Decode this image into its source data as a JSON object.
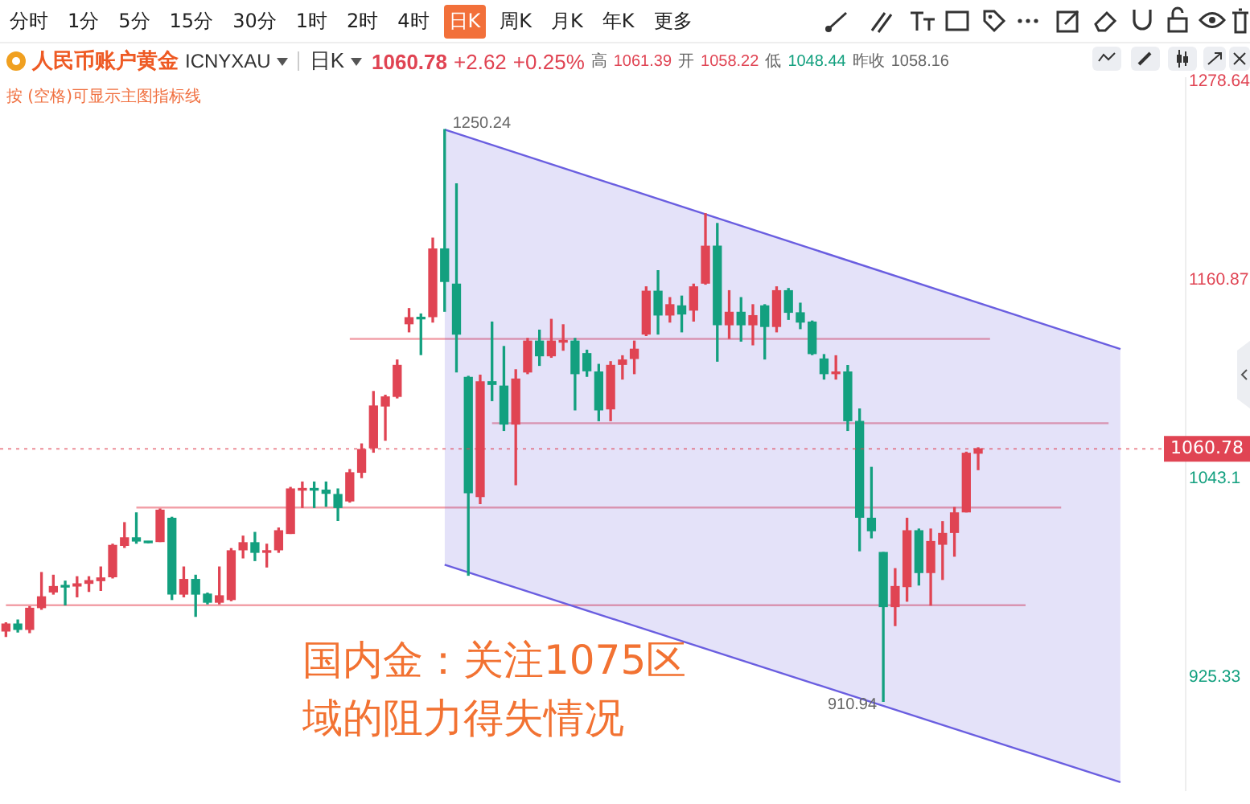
{
  "chart_data": {
    "type": "candlestick",
    "title": "人民币账户黄金 ICNYXAU",
    "subtitle": "日K 1060.78 +2.62 +0.25% 高 1061.39 开 1058.22 低 1048.44 昨收 1058.16",
    "annotations": [
      "分时",
      "1分",
      "5分",
      "15分",
      "30分",
      "1时",
      "2时",
      "4时",
      "日K",
      "周K",
      "月K",
      "年K",
      "更多",
      "按 (空格)可显示主图指标线",
      "国内金：关注1075区域的阻力得失情况",
      "1250.24",
      "910.94"
    ],
    "categories": [
      null,
      null,
      null,
      null,
      null,
      null,
      null,
      null,
      null,
      null,
      null,
      null,
      null,
      null,
      null,
      null,
      null,
      null,
      null,
      null,
      null,
      null,
      null,
      null,
      null,
      null,
      null,
      null,
      null,
      null,
      null,
      null,
      null,
      null,
      null,
      null,
      null,
      null,
      null,
      null,
      null,
      null,
      null,
      null,
      null,
      null,
      null,
      null,
      null,
      null,
      null,
      null,
      null,
      null,
      null,
      null,
      null,
      null,
      null,
      null,
      null,
      null,
      null,
      null,
      null,
      null,
      null,
      null,
      null,
      null,
      null,
      null,
      null,
      null,
      null,
      null,
      null,
      null,
      null,
      null,
      null,
      null,
      null,
      null,
      null,
      null,
      null,
      null,
      null,
      null,
      null,
      null,
      null,
      null,
      null,
      null,
      null,
      null,
      null,
      null
    ],
    "ohlc": [
      [
        952.7,
        957.6,
        949.5,
        956.9
      ],
      [
        956.9,
        959.2,
        952.1,
        953.7
      ],
      [
        953.7,
        967.2,
        951.8,
        966.2
      ],
      [
        966.6,
        987.4,
        965.6,
        973.0
      ],
      [
        975.9,
        985.8,
        974.6,
        979.1
      ],
      [
        979.4,
        982.3,
        968.2,
        978.8
      ],
      [
        979.4,
        984.9,
        973.0,
        980.7
      ],
      [
        981.0,
        984.9,
        976.2,
        982.6
      ],
      [
        982.6,
        990.7,
        976.8,
        984.2
      ],
      [
        984.9,
        1004.2,
        984.2,
        1003.5
      ],
      [
        1003.5,
        1017.0,
        1002.3,
        1008.0
      ],
      [
        1008.0,
        1022.8,
        1004.8,
        1006.1
      ],
      [
        1005.8,
        1005.8,
        1005.1,
        1005.1
      ],
      [
        1005.8,
        1025.1,
        1005.8,
        1024.4
      ],
      [
        1019.6,
        1020.2,
        971.4,
        974.6
      ],
      [
        974.6,
        990.7,
        973.0,
        983.3
      ],
      [
        983.3,
        985.8,
        961.4,
        974.6
      ],
      [
        974.6,
        975.2,
        968.8,
        969.8
      ],
      [
        969.8,
        990.7,
        968.8,
        973.6
      ],
      [
        971.4,
        1001.6,
        970.7,
        1000.3
      ],
      [
        1000.9,
        1009.0,
        996.1,
        1005.1
      ],
      [
        1005.1,
        1011.2,
        994.5,
        999.4
      ],
      [
        999.4,
        1004.2,
        990.7,
        1000.3
      ],
      [
        1000.9,
        1013.8,
        999.4,
        1012.2
      ],
      [
        1010.6,
        1037.9,
        1010.6,
        1037.0
      ],
      [
        1036.3,
        1041.1,
        1026.0,
        1037.3
      ],
      [
        1037.3,
        1041.1,
        1026.0,
        1036.3
      ],
      [
        1036.3,
        1041.1,
        1026.7,
        1034.4
      ],
      [
        1033.7,
        1037.0,
        1018.3,
        1026.0
      ],
      [
        1029.9,
        1048.5,
        1029.2,
        1046.6
      ],
      [
        1046.9,
        1063.7,
        1043.7,
        1060.4
      ],
      [
        1061.4,
        1094.8,
        1058.8,
        1086.2
      ],
      [
        1086.2,
        1092.6,
        1065.9,
        1091.6
      ],
      [
        1091.9,
        1113.5,
        1091.0,
        1110.3
      ],
      [
        1135.0,
        1144.0,
        1130.2,
        1138.6
      ],
      [
        1138.6,
        1140.8,
        1116.7,
        1137.9
      ],
      [
        1139.2,
        1185.8,
        1136.0,
        1179.4
      ],
      [
        1179.4,
        1250.24,
        1142.4,
        1160.1
      ],
      [
        1158.5,
        1218.0,
        1106.4,
        1128.9
      ],
      [
        1103.2,
        1103.8,
        985.8,
        1034.7
      ],
      [
        1032.5,
        1104.5,
        1028.3,
        1100.6
      ],
      [
        1100.6,
        1136.0,
        1089.4,
        1099.0
      ],
      [
        1098.0,
        1121.5,
        1071.7,
        1075.5
      ],
      [
        1075.5,
        1107.7,
        1039.5,
        1102.2
      ],
      [
        1106.4,
        1126.3,
        1105.4,
        1124.7
      ],
      [
        1124.7,
        1131.2,
        1110.3,
        1116.0
      ],
      [
        1116.0,
        1137.6,
        1115.1,
        1124.7
      ],
      [
        1124.1,
        1134.4,
        1119.3,
        1124.7
      ],
      [
        1124.7,
        1126.3,
        1083.9,
        1105.4
      ],
      [
        1117.3,
        1119.3,
        1103.8,
        1107.1
      ],
      [
        1106.4,
        1110.9,
        1077.5,
        1083.9
      ],
      [
        1084.5,
        1112.5,
        1077.5,
        1110.3
      ],
      [
        1110.9,
        1116.0,
        1102.2,
        1113.5
      ],
      [
        1114.4,
        1124.7,
        1105.4,
        1119.9
      ],
      [
        1128.9,
        1156.9,
        1128.0,
        1154.3
      ],
      [
        1154.3,
        1166.5,
        1128.9,
        1140.2
      ],
      [
        1140.2,
        1150.5,
        1136.0,
        1146.3
      ],
      [
        1145.6,
        1151.4,
        1130.2,
        1140.8
      ],
      [
        1143.1,
        1158.5,
        1136.6,
        1156.9
      ],
      [
        1159.1,
        1200.3,
        1158.5,
        1181.0
      ],
      [
        1181.0,
        1194.5,
        1112.8,
        1134.4
      ],
      [
        1134.4,
        1154.6,
        1126.3,
        1141.8
      ],
      [
        1141.8,
        1150.5,
        1124.7,
        1134.4
      ],
      [
        1134.4,
        1146.3,
        1122.5,
        1139.8
      ],
      [
        1145.6,
        1146.3,
        1114.1,
        1133.4
      ],
      [
        1133.4,
        1156.9,
        1130.2,
        1154.6
      ],
      [
        1154.6,
        1155.9,
        1137.6,
        1141.8
      ],
      [
        1141.5,
        1147.2,
        1132.1,
        1136.0
      ],
      [
        1136.0,
        1136.6,
        1116.7,
        1117.3
      ],
      [
        1114.1,
        1116.7,
        1102.2,
        1105.4
      ],
      [
        1105.4,
        1116.0,
        1102.2,
        1106.4
      ],
      [
        1106.4,
        1110.2,
        1071.7,
        1077.5
      ],
      [
        1077.1,
        1084.5,
        1000.3,
        1020.2
      ],
      [
        1019.6,
        1049.8,
        1008.0,
        1012.2
      ],
      [
        999.3,
        999.3,
        910.94,
        967.2
      ],
      [
        967.2,
        989.7,
        955.9,
        979.1
      ],
      [
        979.1,
        1019.6,
        970.4,
        1012.2
      ],
      [
        1012.2,
        1013.2,
        980.0,
        987.4
      ],
      [
        987.4,
        1013.2,
        968.1,
        1005.8
      ],
      [
        1004.2,
        1017.6,
        983.3,
        1010.6
      ],
      [
        1011.2,
        1026.0,
        997.1,
        1022.8
      ],
      [
        1023.4,
        1058.8,
        1023.4,
        1058.16
      ],
      [
        1058.22,
        1061.39,
        1048.44,
        1060.78
      ],
      null,
      null,
      null,
      null,
      null,
      null,
      null,
      null,
      null,
      null,
      null,
      null,
      null,
      null,
      null,
      null,
      null
    ],
    "series": [
      {
        "type": "line",
        "color": "#6a5ee0",
        "values": [
          null,
          null,
          null,
          null,
          null,
          null,
          null,
          null,
          null,
          null,
          null,
          null,
          null,
          null,
          null,
          null,
          null,
          null,
          null,
          null,
          null,
          null,
          null,
          null,
          null,
          null,
          null,
          null,
          null,
          null,
          null,
          null,
          null,
          null,
          null,
          null,
          null,
          992,
          null,
          null,
          null,
          null,
          null,
          null,
          null,
          null,
          null,
          null,
          null,
          null,
          null,
          null,
          null,
          null,
          null,
          null,
          null,
          null,
          null,
          null,
          null,
          null,
          null,
          null,
          null,
          null,
          null,
          null,
          null,
          null,
          null,
          null,
          null,
          null,
          null,
          null,
          null,
          null,
          null,
          null,
          null,
          null,
          null,
          null,
          null,
          null,
          null,
          null,
          null,
          null,
          null,
          null,
          null,
          null,
          863,
          null,
          null,
          null,
          null,
          null
        ]
      },
      {
        "type": "area",
        "color": "#6a5ee0",
        "values": [
          null,
          null,
          null,
          null,
          null,
          null,
          null,
          null,
          null,
          null,
          null,
          null,
          null,
          null,
          null,
          null,
          null,
          null,
          null,
          null,
          null,
          null,
          null,
          null,
          null,
          null,
          null,
          null,
          null,
          null,
          null,
          null,
          null,
          null,
          null,
          null,
          null,
          1250.24,
          null,
          null,
          null,
          null,
          null,
          null,
          null,
          null,
          null,
          null,
          null,
          null,
          null,
          null,
          null,
          null,
          null,
          null,
          null,
          null,
          null,
          null,
          null,
          null,
          null,
          null,
          null,
          null,
          null,
          null,
          null,
          null,
          null,
          null,
          null,
          null,
          null,
          null,
          null,
          null,
          null,
          null,
          null,
          null,
          null,
          null,
          null,
          null,
          null,
          null,
          null,
          null,
          null,
          null,
          null,
          null,
          1120,
          null,
          null,
          null,
          null,
          null
        ]
      },
      {
        "type": "line",
        "color": "#f2a0a8",
        "values": [
          null,
          null,
          null,
          null,
          null,
          null,
          null,
          null,
          null,
          null,
          null,
          null,
          null,
          null,
          null,
          null,
          null,
          null,
          null,
          null,
          null,
          null,
          null,
          null,
          null,
          null,
          null,
          null,
          null,
          1126,
          null,
          null,
          null,
          null,
          null,
          null,
          null,
          null,
          null,
          null,
          null,
          null,
          null,
          null,
          null,
          null,
          null,
          null,
          null,
          null,
          null,
          null,
          null,
          null,
          null,
          null,
          null,
          null,
          null,
          null,
          null,
          null,
          null,
          null,
          null,
          null,
          null,
          null,
          null,
          null,
          null,
          null,
          null,
          null,
          null,
          null,
          null,
          null,
          null,
          null,
          null,
          null,
          null,
          1126,
          null,
          null,
          null,
          null,
          null,
          null,
          null,
          null,
          null,
          null,
          null,
          null,
          null,
          null,
          null,
          null
        ]
      },
      {
        "type": "line",
        "color": "#f2a0a8",
        "values": [
          null,
          null,
          null,
          null,
          null,
          null,
          null,
          null,
          null,
          null,
          null,
          null,
          null,
          null,
          null,
          null,
          null,
          null,
          null,
          null,
          null,
          null,
          null,
          null,
          null,
          null,
          null,
          null,
          null,
          null,
          null,
          null,
          null,
          null,
          null,
          null,
          null,
          null,
          null,
          null,
          null,
          1076,
          null,
          null,
          null,
          null,
          null,
          null,
          null,
          null,
          null,
          null,
          null,
          null,
          null,
          null,
          null,
          null,
          null,
          null,
          null,
          null,
          null,
          null,
          null,
          null,
          null,
          null,
          null,
          null,
          null,
          null,
          null,
          null,
          null,
          null,
          null,
          null,
          null,
          null,
          null,
          null,
          null,
          null,
          null,
          null,
          null,
          null,
          null,
          null,
          null,
          null,
          null,
          1076,
          null,
          null,
          null,
          null,
          null,
          null
        ]
      },
      {
        "type": "line",
        "color": "#f2a0a8",
        "values": [
          null,
          null,
          null,
          null,
          null,
          null,
          null,
          null,
          null,
          null,
          null,
          1026,
          null,
          null,
          null,
          null,
          null,
          null,
          null,
          null,
          null,
          null,
          null,
          null,
          null,
          null,
          null,
          null,
          null,
          null,
          null,
          null,
          null,
          null,
          null,
          null,
          null,
          null,
          null,
          null,
          null,
          null,
          null,
          null,
          null,
          null,
          null,
          null,
          null,
          null,
          null,
          null,
          null,
          null,
          null,
          null,
          null,
          null,
          null,
          null,
          null,
          null,
          null,
          null,
          null,
          null,
          null,
          null,
          null,
          null,
          null,
          null,
          null,
          null,
          null,
          null,
          null,
          null,
          null,
          null,
          null,
          null,
          null,
          null,
          null,
          null,
          null,
          null,
          null,
          1026,
          null,
          null,
          null,
          null,
          null,
          null,
          null,
          null,
          null,
          null
        ]
      },
      {
        "type": "line",
        "color": "#f2a0a8",
        "values": [
          968,
          null,
          null,
          null,
          null,
          null,
          null,
          null,
          null,
          null,
          null,
          null,
          null,
          null,
          null,
          null,
          null,
          null,
          null,
          null,
          null,
          null,
          null,
          null,
          null,
          null,
          null,
          null,
          null,
          null,
          null,
          null,
          null,
          null,
          null,
          null,
          null,
          null,
          null,
          null,
          null,
          null,
          null,
          null,
          null,
          null,
          null,
          null,
          null,
          null,
          null,
          null,
          null,
          null,
          null,
          null,
          null,
          null,
          null,
          null,
          null,
          null,
          null,
          null,
          null,
          null,
          null,
          null,
          null,
          null,
          null,
          null,
          null,
          null,
          null,
          null,
          null,
          null,
          null,
          null,
          null,
          null,
          null,
          null,
          null,
          null,
          968,
          null,
          null,
          null,
          null,
          null,
          null,
          null,
          null,
          null,
          null,
          null,
          null,
          null
        ]
      }
    ],
    "ref_lines": [
      {
        "axis": "y",
        "value": 1060.78,
        "label": "1060.78",
        "color": "#e04453",
        "line_style": "dotted"
      }
    ],
    "ylim": [
      858,
      1281
    ],
    "yticks": [
      925.33,
      1043.1,
      1160.87,
      1278.64
    ],
    "tick_labels": "y",
    "grid": false,
    "legend": false,
    "marker": "none"
  }
}
